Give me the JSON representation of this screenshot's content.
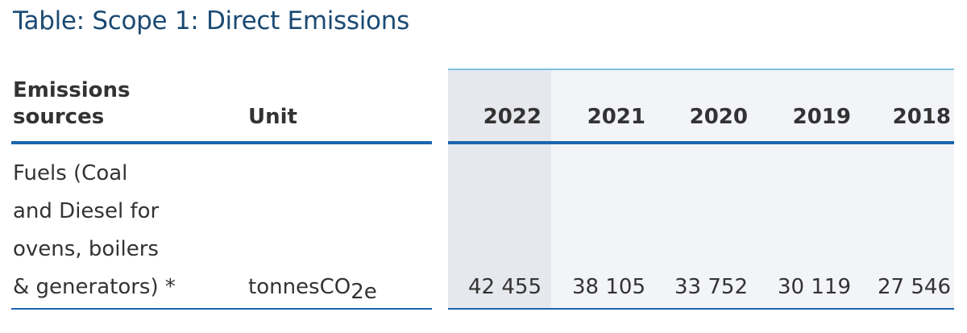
{
  "title": "Table: Scope 1: Direct Emissions",
  "table": {
    "headers": {
      "source": "Emissions\nsources",
      "unit": "Unit",
      "years": [
        "2022",
        "2021",
        "2020",
        "2019",
        "2018"
      ]
    },
    "rows": [
      {
        "source": "Fuels (Coal\nand Diesel for\novens, boilers\n& generators) *",
        "unit_base": "tonnesCO",
        "unit_sub": "2e",
        "values": [
          "42 455",
          "38 105",
          "33 752",
          "30 119",
          "27 546"
        ]
      }
    ]
  },
  "colors": {
    "title": "#1b4a73",
    "rule": "#1a66ad",
    "top_rule": "#7fc2e0",
    "year_band": "#f3f4f7",
    "current_year_band": "#e6e8ed"
  }
}
